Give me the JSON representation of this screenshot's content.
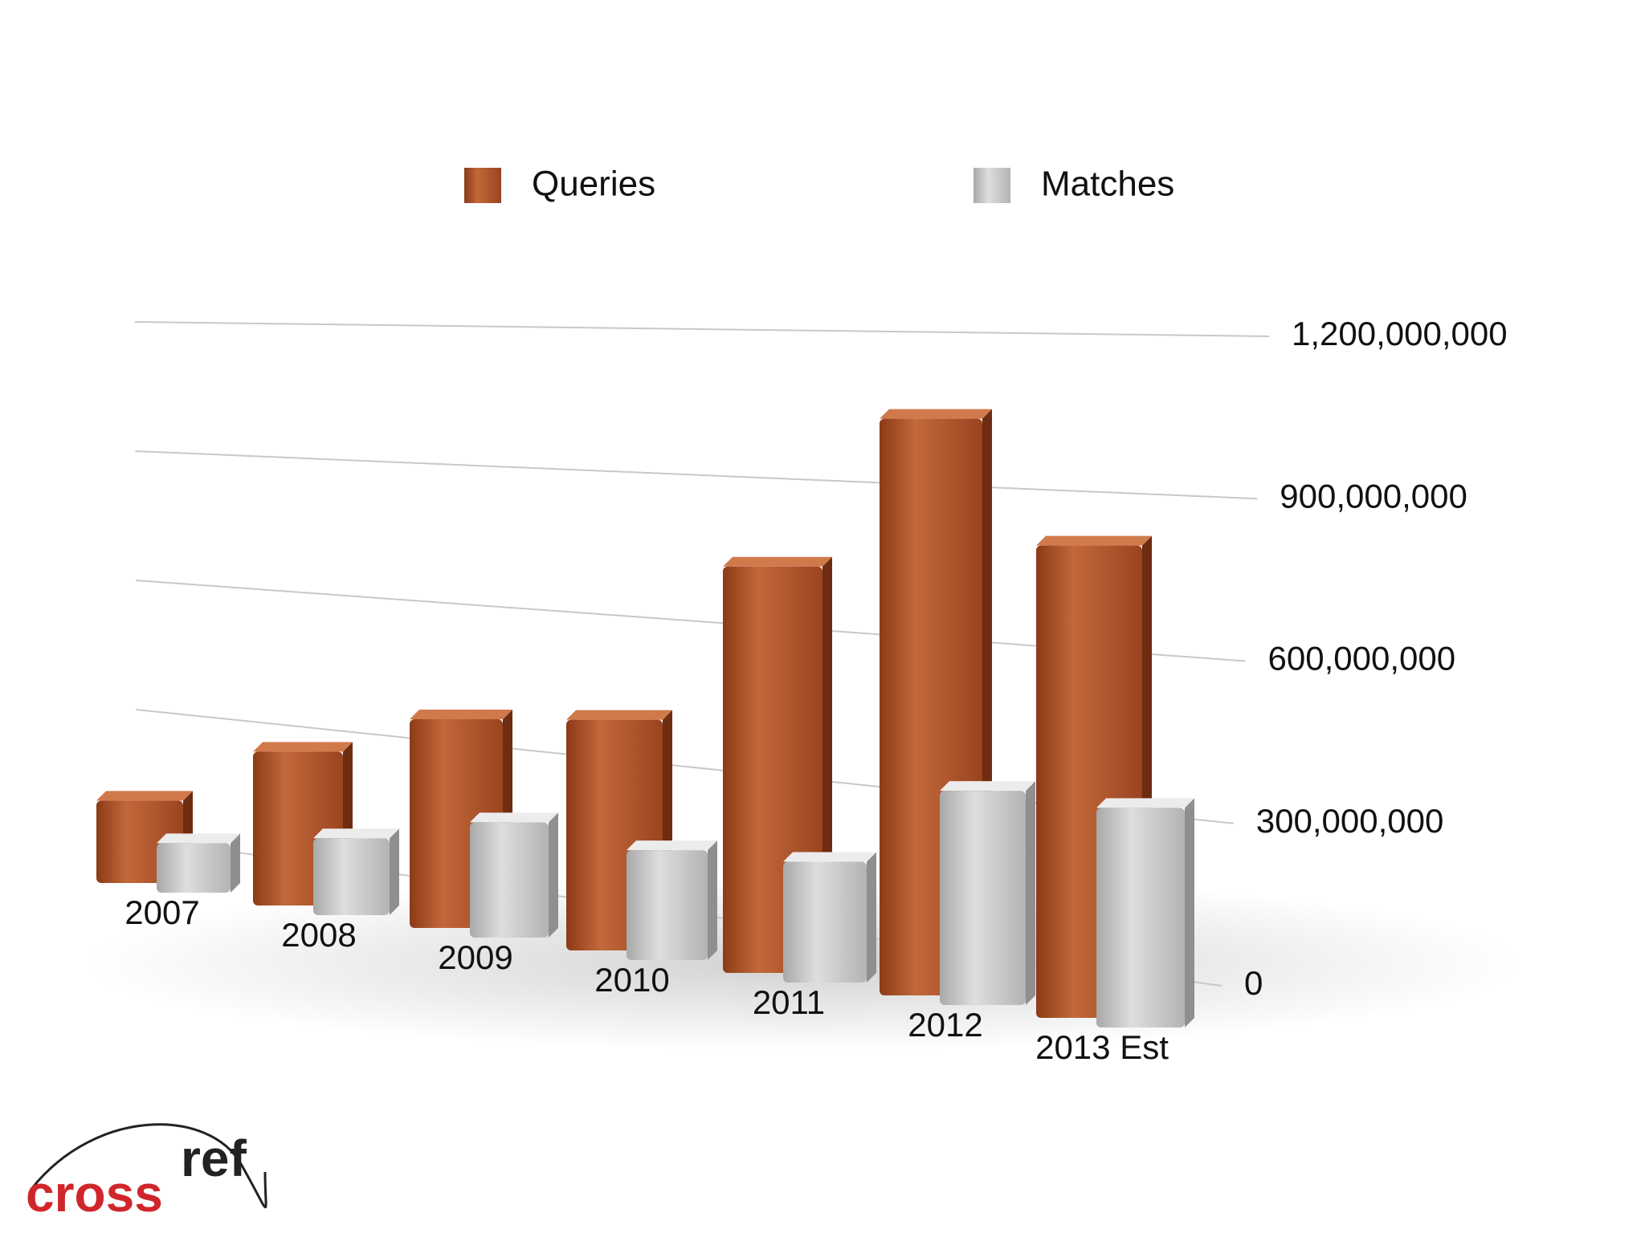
{
  "chart_data": {
    "type": "bar3d",
    "categories": [
      "2007",
      "2008",
      "2009",
      "2010",
      "2011",
      "2012",
      "2013 Est"
    ],
    "series": [
      {
        "name": "Queries",
        "color": "#b5552a",
        "values": [
          150000000,
          280000000,
          380000000,
          420000000,
          740000000,
          1050000000,
          860000000
        ]
      },
      {
        "name": "Matches",
        "color": "#c9c9c9",
        "values": [
          90000000,
          140000000,
          210000000,
          200000000,
          220000000,
          390000000,
          400000000
        ]
      }
    ],
    "ylim": [
      0,
      1200000000
    ],
    "yticks": [
      0,
      {
        "value": 300000000,
        "label": "300,000,000"
      },
      {
        "value": 600000000,
        "label": "600,000,000"
      },
      {
        "value": 900000000,
        "label": "900,000,000"
      },
      {
        "value": 1200000000,
        "label": "1,200,000,000"
      }
    ],
    "grid": true,
    "legend": "top"
  },
  "logo": {
    "first": "cross",
    "second": "ref"
  }
}
